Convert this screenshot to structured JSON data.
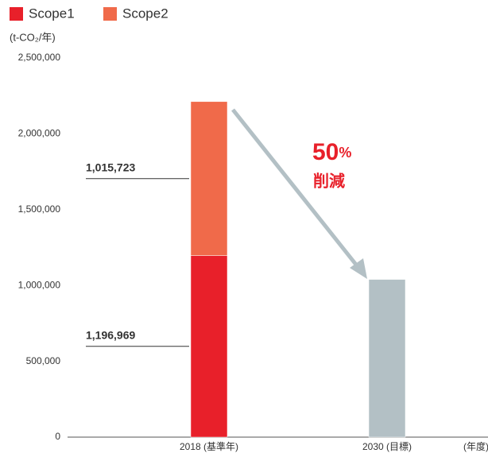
{
  "chart_data": {
    "type": "bar",
    "stacked": true,
    "unit_label": "(t-CO₂/年)",
    "x_label": "(年度)",
    "categories": [
      "2018 (基準年)",
      "2030 (目標)"
    ],
    "series": [
      {
        "name": "Scope1",
        "color": "#e8202a",
        "values": [
          1196969,
          null
        ],
        "value_labels": [
          "1,196,969",
          null
        ]
      },
      {
        "name": "Scope2",
        "color": "#f06a4a",
        "values": [
          1015723,
          null
        ],
        "value_labels": [
          "1,015,723",
          null
        ]
      },
      {
        "color": "#b3c0c5",
        "values": [
          null,
          1040000
        ]
      }
    ],
    "annotation": [
      "50",
      "%",
      "削減"
    ],
    "ylim": [
      0,
      2500000
    ],
    "yticks": [
      0,
      {
        "value": 500000,
        "label": "500,000"
      },
      {
        "value": 1000000,
        "label": "1,000,000"
      },
      {
        "value": 1500000,
        "label": "1,500,000"
      },
      {
        "value": 2000000,
        "label": "2,000,000"
      },
      {
        "value": 2500000,
        "label": "2,500,000"
      }
    ]
  }
}
